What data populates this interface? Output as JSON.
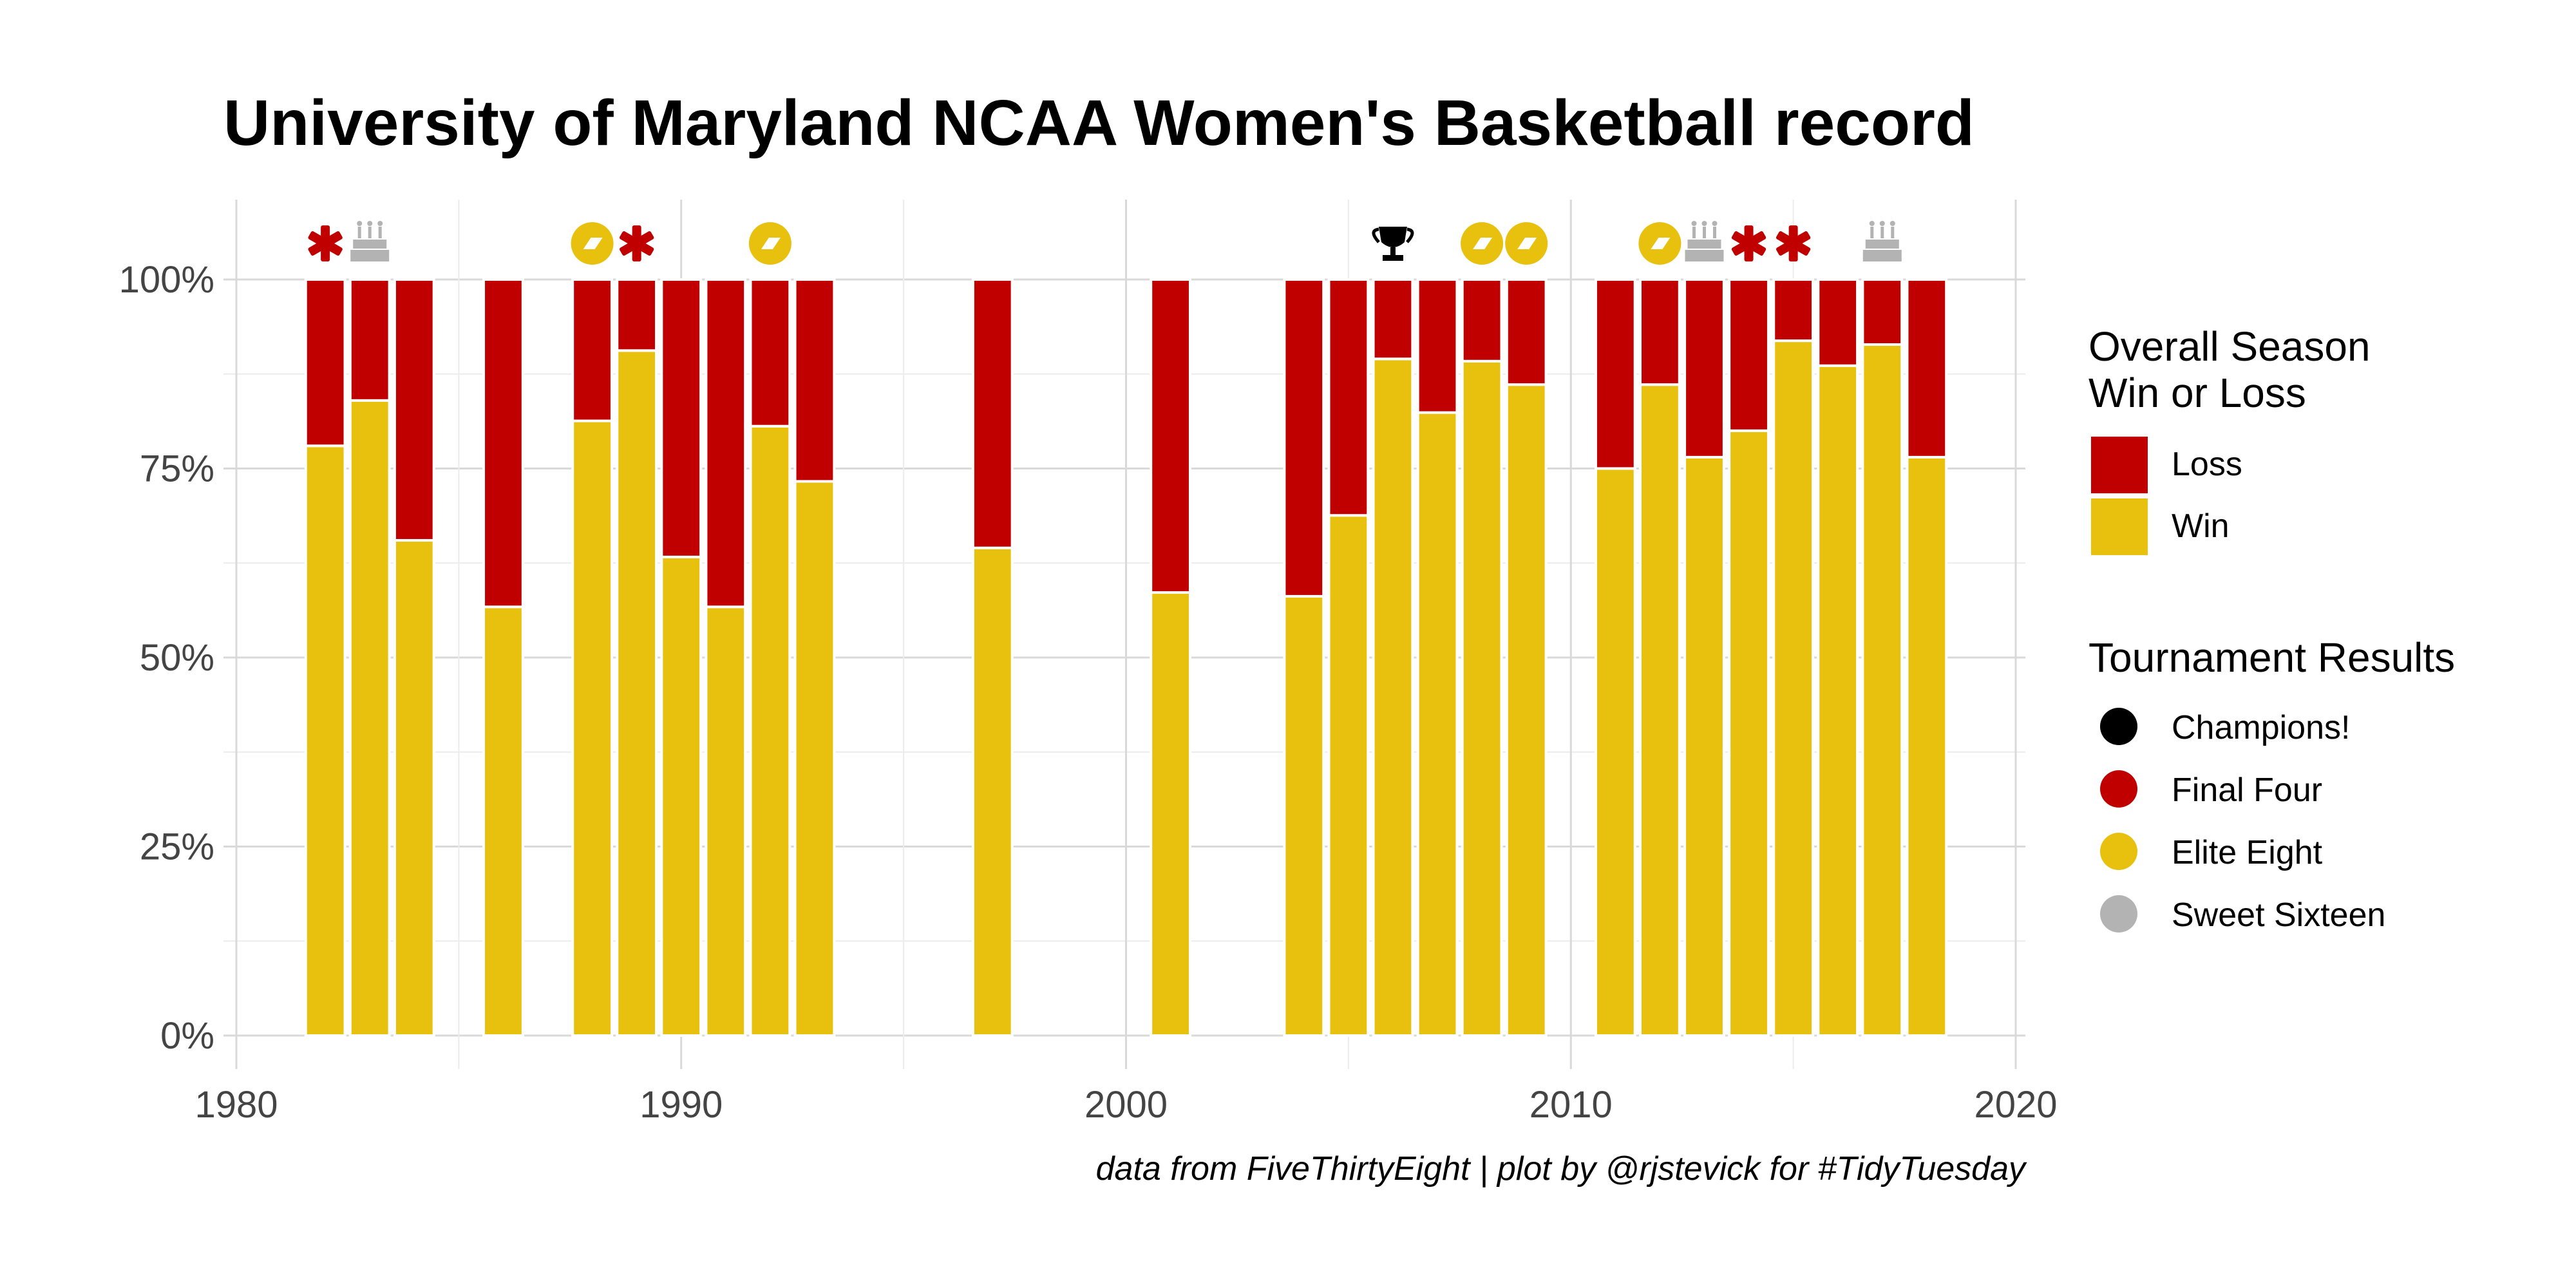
{
  "chart_data": {
    "type": "bar",
    "title": "University of Maryland NCAA Women's Basketball record",
    "caption": "data from FiveThirtyEight | plot by @rjstevick for #TidyTuesday",
    "xlabel": "",
    "ylabel": "",
    "xlim": [
      1980,
      2020
    ],
    "ylim": [
      0,
      1
    ],
    "x_ticks": [
      1980,
      1990,
      2000,
      2010,
      2020
    ],
    "x_tick_labels": [
      "1980",
      "1990",
      "2000",
      "2010",
      "2020"
    ],
    "y_ticks": [
      0,
      0.25,
      0.5,
      0.75,
      1
    ],
    "y_tick_labels": [
      "0%",
      "25%",
      "50%",
      "75%",
      "100%"
    ],
    "stacked": true,
    "grid": true,
    "colors": {
      "win": "#e8c10e",
      "loss": "#c00000",
      "champions": "#000000",
      "final_four": "#c00000",
      "elite_eight": "#e8c10e",
      "sweet_sixteen": "#b3b3b3"
    },
    "series": [
      {
        "name": "Win",
        "key": "win"
      },
      {
        "name": "Loss",
        "key": "loss"
      }
    ],
    "bars": [
      {
        "year": 1982,
        "win": 0.78
      },
      {
        "year": 1983,
        "win": 0.84
      },
      {
        "year": 1984,
        "win": 0.655
      },
      {
        "year": 1986,
        "win": 0.567
      },
      {
        "year": 1988,
        "win": 0.813
      },
      {
        "year": 1989,
        "win": 0.906
      },
      {
        "year": 1990,
        "win": 0.633
      },
      {
        "year": 1991,
        "win": 0.567
      },
      {
        "year": 1992,
        "win": 0.806
      },
      {
        "year": 1993,
        "win": 0.733
      },
      {
        "year": 1997,
        "win": 0.645
      },
      {
        "year": 2001,
        "win": 0.586
      },
      {
        "year": 2004,
        "win": 0.581
      },
      {
        "year": 2005,
        "win": 0.688
      },
      {
        "year": 2006,
        "win": 0.895
      },
      {
        "year": 2007,
        "win": 0.824
      },
      {
        "year": 2008,
        "win": 0.892
      },
      {
        "year": 2009,
        "win": 0.861
      },
      {
        "year": 2011,
        "win": 0.75
      },
      {
        "year": 2012,
        "win": 0.861
      },
      {
        "year": 2013,
        "win": 0.765
      },
      {
        "year": 2014,
        "win": 0.8
      },
      {
        "year": 2015,
        "win": 0.919
      },
      {
        "year": 2016,
        "win": 0.886
      },
      {
        "year": 2017,
        "win": 0.914
      },
      {
        "year": 2018,
        "win": 0.765
      }
    ],
    "tournament_results": [
      {
        "year": 1982,
        "result": "final_four"
      },
      {
        "year": 1983,
        "result": "sweet_sixteen"
      },
      {
        "year": 1988,
        "result": "elite_eight"
      },
      {
        "year": 1989,
        "result": "final_four"
      },
      {
        "year": 1992,
        "result": "elite_eight"
      },
      {
        "year": 2006,
        "result": "champions"
      },
      {
        "year": 2008,
        "result": "elite_eight"
      },
      {
        "year": 2009,
        "result": "elite_eight"
      },
      {
        "year": 2012,
        "result": "elite_eight"
      },
      {
        "year": 2013,
        "result": "sweet_sixteen"
      },
      {
        "year": 2014,
        "result": "final_four"
      },
      {
        "year": 2015,
        "result": "final_four"
      },
      {
        "year": 2017,
        "result": "sweet_sixteen"
      }
    ],
    "legend": {
      "placement": "right",
      "fill_title_line1": "Overall Season",
      "fill_title_line2": "Win or Loss",
      "fill_items": [
        {
          "label": "Loss",
          "key": "loss"
        },
        {
          "label": "Win",
          "key": "win"
        }
      ],
      "result_title": "Tournament Results",
      "result_items": [
        {
          "label": "Champions!",
          "key": "champions"
        },
        {
          "label": "Final Four",
          "key": "final_four"
        },
        {
          "label": "Elite Eight",
          "key": "elite_eight"
        },
        {
          "label": "Sweet Sixteen",
          "key": "sweet_sixteen"
        }
      ]
    }
  }
}
